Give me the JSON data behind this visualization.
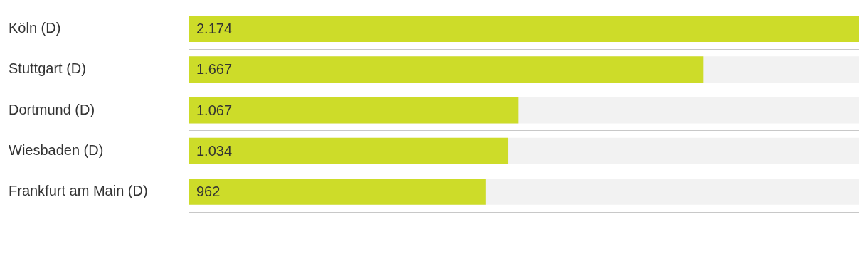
{
  "chart_data": {
    "type": "bar",
    "orientation": "horizontal",
    "categories": [
      "Köln (D)",
      "Stuttgart (D)",
      "Dortmund (D)",
      "Wiesbaden (D)",
      "Frankfurt am Main (D)"
    ],
    "values": [
      2174,
      1667,
      1067,
      1034,
      962
    ],
    "value_labels": [
      "2.174",
      "1.667",
      "1.067",
      "1.034",
      "962"
    ],
    "color": "#cddc29",
    "xlim": [
      0,
      2174
    ],
    "tick_labels": "y",
    "grid": "y"
  }
}
